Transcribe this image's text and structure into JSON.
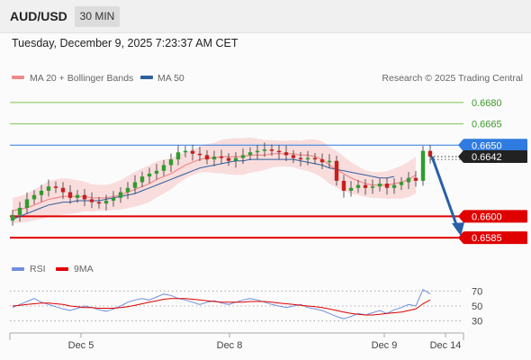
{
  "header": {
    "symbol": "AUD/USD",
    "timeframe": "30 MIN"
  },
  "timestamp": "Tuesday, December 9, 2025 7:23:37 AM CET",
  "legend": {
    "ma20": {
      "label": "MA 20 + Bollinger Bands",
      "color": "#f08a8a"
    },
    "ma50": {
      "label": "MA 50",
      "color": "#2f5f9e"
    },
    "credit": "Research © 2025 Trading Central"
  },
  "rsi_legend": {
    "rsi": {
      "label": "RSI",
      "color": "#6f8fdf"
    },
    "ma9": {
      "label": "9MA",
      "color": "#e00000"
    }
  },
  "chart_data": [
    {
      "type": "candlestick",
      "ylim": [
        0.6575,
        0.669
      ],
      "x_ticks": [
        "Dec 5",
        "Dec 8",
        "Dec 9",
        "Dec 14"
      ],
      "levels": [
        {
          "value": "0.6680",
          "kind": "resistance",
          "color": "#7dc45b"
        },
        {
          "value": "0.6665",
          "kind": "resistance",
          "color": "#7dc45b"
        },
        {
          "value": "0.6650",
          "kind": "pivot",
          "color": "#2f7be0"
        },
        {
          "value": "0.6600",
          "kind": "support",
          "color": "#e00000"
        },
        {
          "value": "0.6585",
          "kind": "support",
          "color": "#e00000"
        }
      ],
      "last_price": "0.6642",
      "close": [
        0.6601,
        0.6606,
        0.6612,
        0.6615,
        0.6618,
        0.6621,
        0.662,
        0.6617,
        0.6613,
        0.6615,
        0.6612,
        0.661,
        0.6609,
        0.6611,
        0.6613,
        0.6617,
        0.662,
        0.6624,
        0.6628,
        0.663,
        0.6632,
        0.6636,
        0.664,
        0.6645,
        0.6646,
        0.6644,
        0.6643,
        0.664,
        0.6642,
        0.6641,
        0.6639,
        0.6641,
        0.6643,
        0.6645,
        0.6646,
        0.6647,
        0.6646,
        0.6645,
        0.6643,
        0.6641,
        0.664,
        0.6641,
        0.664,
        0.6638,
        0.6639,
        0.6625,
        0.6618,
        0.662,
        0.6622,
        0.662,
        0.6621,
        0.6623,
        0.662,
        0.6622,
        0.6624,
        0.6627,
        0.6625,
        0.6646,
        0.6642
      ],
      "ma20": [
        0.6604,
        0.6605,
        0.6606,
        0.6608,
        0.661,
        0.6612,
        0.6613,
        0.6614,
        0.6614,
        0.6614,
        0.6614,
        0.6613,
        0.6613,
        0.6613,
        0.6614,
        0.6615,
        0.6617,
        0.6619,
        0.6621,
        0.6623,
        0.6626,
        0.6628,
        0.663,
        0.6633,
        0.6636,
        0.6638,
        0.664,
        0.6641,
        0.6641,
        0.6642,
        0.6642,
        0.6642,
        0.6642,
        0.6643,
        0.6643,
        0.6643,
        0.6644,
        0.6644,
        0.6644,
        0.6644,
        0.6643,
        0.6643,
        0.6642,
        0.664,
        0.6636,
        0.6633,
        0.663,
        0.6627,
        0.6625,
        0.6623,
        0.6622,
        0.6622,
        0.6622,
        0.6623,
        0.6624,
        0.6626,
        0.6629
      ],
      "ma50": [
        0.6598,
        0.66,
        0.6602,
        0.6604,
        0.6606,
        0.6608,
        0.6609,
        0.661,
        0.661,
        0.6611,
        0.6611,
        0.6611,
        0.6611,
        0.6612,
        0.6613,
        0.6614,
        0.6615,
        0.6616,
        0.6618,
        0.662,
        0.6622,
        0.6624,
        0.6626,
        0.6628,
        0.663,
        0.6632,
        0.6634,
        0.6635,
        0.6636,
        0.6637,
        0.6638,
        0.6639,
        0.6639,
        0.664,
        0.664,
        0.664,
        0.664,
        0.664,
        0.664,
        0.664,
        0.6639,
        0.6638,
        0.6637,
        0.6636,
        0.6634,
        0.6633,
        0.6632,
        0.6631,
        0.663,
        0.6629,
        0.6628,
        0.6627,
        0.6627,
        0.6628
      ],
      "forecast_arrow": {
        "from": 0.6642,
        "to": 0.6585
      }
    },
    {
      "type": "line",
      "name": "RSI",
      "ylim": [
        20,
        80
      ],
      "y_ticks": [
        "70",
        "50",
        "30"
      ],
      "rsi": [
        48,
        52,
        56,
        60,
        55,
        52,
        49,
        46,
        44,
        47,
        50,
        48,
        45,
        43,
        46,
        50,
        55,
        58,
        60,
        58,
        62,
        66,
        64,
        60,
        58,
        55,
        52,
        55,
        57,
        54,
        52,
        55,
        58,
        60,
        58,
        55,
        52,
        50,
        48,
        50,
        52,
        48,
        46,
        44,
        40,
        36,
        33,
        36,
        40,
        38,
        41,
        44,
        40,
        45,
        48,
        52,
        50,
        72,
        66
      ],
      "ma9": [
        50,
        51,
        52,
        53,
        54,
        54,
        53,
        52,
        50,
        49,
        48,
        48,
        47,
        47,
        47,
        48,
        49,
        51,
        53,
        55,
        57,
        59,
        60,
        60,
        60,
        59,
        58,
        57,
        56,
        55,
        55,
        55,
        55,
        56,
        56,
        56,
        55,
        54,
        53,
        52,
        51,
        50,
        49,
        48,
        46,
        44,
        42,
        40,
        39,
        38,
        38,
        39,
        40,
        41,
        42,
        44,
        46,
        53,
        58
      ]
    }
  ]
}
